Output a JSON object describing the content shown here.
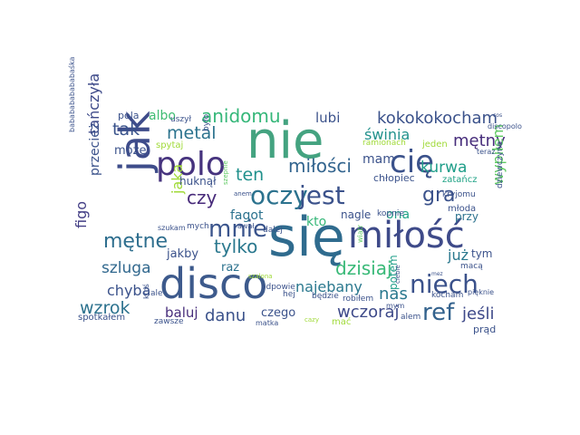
{
  "words": [
    {
      "text": "nie",
      "color": "#44a380"
    },
    {
      "text": "się",
      "color": "#2f6b8e"
    },
    {
      "text": "disco",
      "color": "#3d5a8c"
    },
    {
      "text": "miłość",
      "color": "#3e4a89"
    },
    {
      "text": "jak",
      "color": "#3e4c8a"
    },
    {
      "text": "polo",
      "color": "#46337e"
    },
    {
      "text": "cię",
      "color": "#3b528b"
    },
    {
      "text": "oczy",
      "color": "#2c728e"
    },
    {
      "text": "jest",
      "color": "#3b528b"
    },
    {
      "text": "niech",
      "color": "#3b528b"
    },
    {
      "text": "mnie",
      "color": "#3a548c"
    },
    {
      "text": "ref",
      "color": "#33628d"
    },
    {
      "text": "mętne",
      "color": "#2e6e8e"
    },
    {
      "text": "kokokokocham",
      "color": "#3b528b"
    },
    {
      "text": "miłości",
      "color": "#32648e"
    },
    {
      "text": "dzisiaj",
      "color": "#38b977"
    },
    {
      "text": "anidomu",
      "color": "#35b779"
    },
    {
      "text": "tylko",
      "color": "#2a788e"
    },
    {
      "text": "mętny",
      "color": "#472d7b"
    },
    {
      "text": "tak",
      "color": "#3a538b"
    },
    {
      "text": "metal",
      "color": "#2c738e"
    },
    {
      "text": "gra",
      "color": "#3b528b"
    },
    {
      "text": "czy",
      "color": "#472a7a"
    },
    {
      "text": "ten",
      "color": "#21918c"
    },
    {
      "text": "kurwa",
      "color": "#1f9e89"
    },
    {
      "text": "świnia",
      "color": "#21918c"
    },
    {
      "text": "szluga",
      "color": "#31688e"
    },
    {
      "text": "wczoraj",
      "color": "#3e4a89"
    },
    {
      "text": "najebany",
      "color": "#2a788e"
    },
    {
      "text": "danu",
      "color": "#3b528b"
    },
    {
      "text": "wzrok",
      "color": "#2c728e"
    },
    {
      "text": "jeśli",
      "color": "#3e4989"
    },
    {
      "text": "nas",
      "color": "#2a788e"
    },
    {
      "text": "chyba",
      "color": "#3b528b"
    },
    {
      "text": "tańczyła",
      "color": "#3e4a89"
    },
    {
      "text": "wypiłem",
      "color": "#5ec962"
    },
    {
      "text": "lubi",
      "color": "#3b528b"
    },
    {
      "text": "baluj",
      "color": "#472d7b"
    },
    {
      "text": "jaka",
      "color": "#a0da39"
    },
    {
      "text": "przecież",
      "color": "#3b528b"
    },
    {
      "text": "figo",
      "color": "#433e85"
    },
    {
      "text": "fagot",
      "color": "#2c728e"
    },
    {
      "text": "kto",
      "color": "#35b779"
    },
    {
      "text": "ona",
      "color": "#20a386"
    },
    {
      "text": "już",
      "color": "#2a788e"
    },
    {
      "text": "mam",
      "color": "#3b528b"
    },
    {
      "text": "czego",
      "color": "#3b528b"
    },
    {
      "text": "albo",
      "color": "#3fbc73"
    },
    {
      "text": "może",
      "color": "#3b528b"
    },
    {
      "text": "jakby",
      "color": "#3b528b"
    },
    {
      "text": "potem",
      "color": "#1f9e89"
    },
    {
      "text": "tym",
      "color": "#3b528b"
    },
    {
      "text": "przy",
      "color": "#2c728e"
    },
    {
      "text": "nagle",
      "color": "#3b528b"
    },
    {
      "text": "raz",
      "color": "#2c728e"
    },
    {
      "text": "huknął",
      "color": "#3b528b"
    },
    {
      "text": "chłopiec",
      "color": "#3b528b"
    },
    {
      "text": "pola",
      "color": "#3b528b"
    },
    {
      "text": "uszył",
      "color": "#3b528b"
    },
    {
      "text": "było",
      "color": "#3b528b"
    },
    {
      "text": "spytaj",
      "color": "#a0da39"
    },
    {
      "text": "ramionach",
      "color": "#a0da39"
    },
    {
      "text": "jeden",
      "color": "#a0da39"
    },
    {
      "text": "zatańcz",
      "color": "#20a386"
    },
    {
      "text": "discopolo",
      "color": "#3b528b"
    },
    {
      "text": "teraz",
      "color": "#3b528b"
    },
    {
      "text": "kryjomu",
      "color": "#3b528b"
    },
    {
      "text": "dziewczyno",
      "color": "#3b528b"
    },
    {
      "text": "młoda",
      "color": "#3b528b"
    },
    {
      "text": "kopnie",
      "color": "#3b528b"
    },
    {
      "text": "mych",
      "color": "#3b528b"
    },
    {
      "text": "anem",
      "color": "#3b528b"
    },
    {
      "text": "awał",
      "color": "#3b528b"
    },
    {
      "text": "dalej",
      "color": "#3b528b"
    },
    {
      "text": "szukam",
      "color": "#3b528b"
    },
    {
      "text": "szepnie",
      "color": "#5ec962"
    },
    {
      "text": "bababababababaśka",
      "color": "#3b528b"
    },
    {
      "text": "ktoś",
      "color": "#3b528b"
    },
    {
      "text": "ale",
      "color": "#3b528b"
    },
    {
      "text": "hej",
      "color": "#3b528b"
    },
    {
      "text": "szalona",
      "color": "#a0da39"
    },
    {
      "text": "wiatr",
      "color": "#5ec962"
    },
    {
      "text": "kocham",
      "color": "#3b528b"
    },
    {
      "text": "będzie",
      "color": "#3b528b"
    },
    {
      "text": "robiłem",
      "color": "#3b528b"
    },
    {
      "text": "odpowie",
      "color": "#3b528b"
    },
    {
      "text": "spotkałem",
      "color": "#3b528b"
    },
    {
      "text": "zawsze",
      "color": "#3b528b"
    },
    {
      "text": "matka",
      "color": "#3b528b"
    },
    {
      "text": "cazy",
      "color": "#a0da39"
    },
    {
      "text": "mać",
      "color": "#a0da39"
    },
    {
      "text": "mym",
      "color": "#3b528b"
    },
    {
      "text": "ciebie",
      "color": "#3b528b"
    },
    {
      "text": "pięknie",
      "color": "#3b528b"
    },
    {
      "text": "macą",
      "color": "#3b528b"
    },
    {
      "text": "alem",
      "color": "#3b528b"
    },
    {
      "text": "prąd",
      "color": "#3b528b"
    },
    {
      "text": "mez",
      "color": "#3b528b"
    },
    {
      "text": "cos",
      "color": "#3b528b"
    }
  ]
}
